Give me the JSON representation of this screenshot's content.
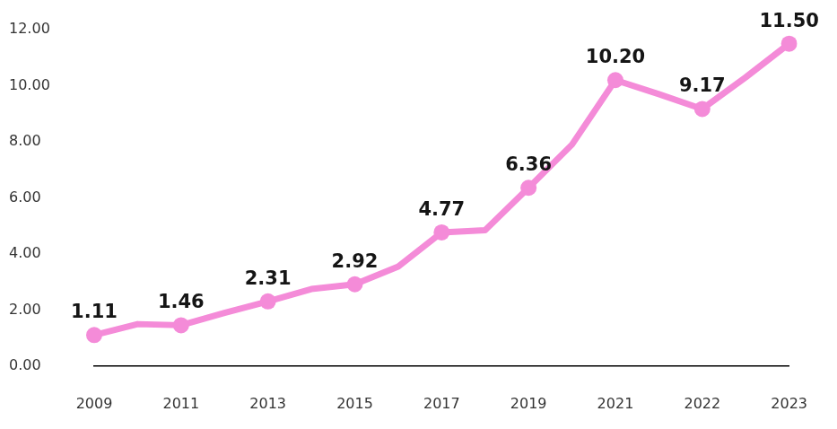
{
  "chart_data": {
    "type": "line",
    "categories": [
      "2009",
      null,
      "2011",
      null,
      "2013",
      null,
      "2015",
      null,
      "2017",
      null,
      "2019",
      null,
      "2021",
      null,
      "2022",
      null,
      "2023"
    ],
    "values": [
      1.11,
      1.5,
      1.46,
      1.9,
      2.31,
      2.75,
      2.92,
      3.55,
      4.77,
      4.85,
      6.36,
      7.9,
      10.2,
      9.7,
      9.17,
      10.3,
      11.5
    ],
    "value_labels": [
      "1.11",
      null,
      "1.46",
      null,
      "2.31",
      null,
      "2.92",
      null,
      "4.77",
      null,
      "6.36",
      null,
      "10.20",
      null,
      "9.17",
      null,
      "11.50"
    ],
    "color": "#f48bd8",
    "marker": "circle",
    "data_labels": true,
    "grid": false,
    "ylim": [
      0,
      12
    ],
    "yticks": [
      {
        "value": 0,
        "label": "0.00"
      },
      {
        "value": 2,
        "label": "2.00"
      },
      {
        "value": 4,
        "label": "4.00"
      },
      {
        "value": 6,
        "label": "6.00"
      },
      {
        "value": 8,
        "label": "8.00"
      },
      {
        "value": 10,
        "label": "10.00"
      },
      {
        "value": 12,
        "label": "12.00"
      }
    ]
  }
}
